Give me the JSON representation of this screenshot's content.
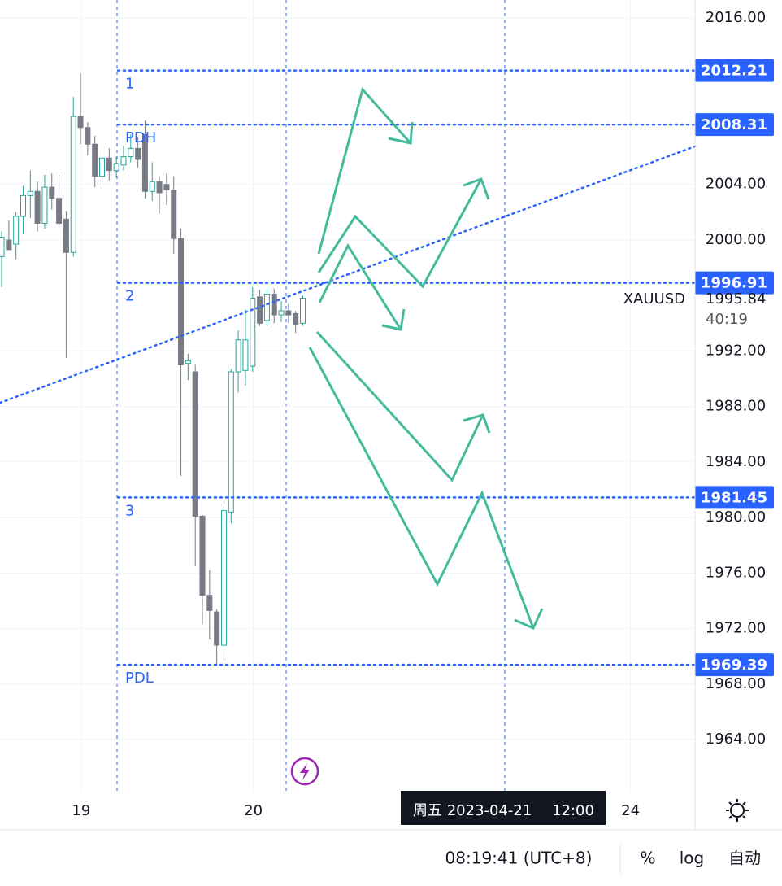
{
  "chart_data": {
    "type": "candlestick",
    "symbol": "XAUUSD",
    "ylim": [
      1960.31,
      2017.29
    ],
    "yticks": [
      {
        "value": 2016,
        "label": "2016.00"
      },
      {
        "value": 2004,
        "label": "2004.00"
      },
      {
        "value": 2000,
        "label": "2000.00"
      },
      {
        "value": 1992,
        "label": "1992.00"
      },
      {
        "value": 1988,
        "label": "1988.00"
      },
      {
        "value": 1984,
        "label": "1984.00"
      },
      {
        "value": 1980,
        "label": "1980.00"
      },
      {
        "value": 1976,
        "label": "1976.00"
      },
      {
        "value": 1972,
        "label": "1972.00"
      },
      {
        "value": 1968,
        "label": "1968.00"
      },
      {
        "value": 1964,
        "label": "1964.00"
      }
    ],
    "xlim": [
      -0.23,
      96.7
    ],
    "xticks": [
      {
        "value": 11.1,
        "label": "19"
      },
      {
        "value": 35.1,
        "label": "20"
      },
      {
        "value": 87.7,
        "label": "24"
      }
    ],
    "up_color": "#26a69a",
    "down_color": "#787b86",
    "candles": {
      "open": [
        1998.8,
        2000.0,
        1999.7,
        2001.7,
        2003.2,
        2003.5,
        2001.2,
        2003.8,
        2003.0,
        2001.5,
        1999.1,
        2008.9,
        2008.1,
        2006.9,
        2004.6,
        2005.9,
        2005.0,
        2005.4,
        2006.0,
        2006.6,
        2007.6,
        2003.5,
        2004.2,
        2004.0,
        2003.6,
        2000.1,
        1991.1,
        1990.5,
        1980.1,
        1974.4,
        1973.2,
        1970.8,
        1980.4,
        1990.5,
        1990.6,
        1990.9,
        1995.9,
        1994.2,
        1996.1,
        1994.6,
        1994.9,
        1994.7,
        1994.0
      ],
      "high": [
        2000.6,
        2001.4,
        2002.0,
        2003.9,
        2005.0,
        2004.2,
        2004.7,
        2004.8,
        2004.7,
        2002.1,
        2010.3,
        2012.0,
        2008.5,
        2007.5,
        2006.5,
        2006.6,
        2006.0,
        2006.8,
        2007.6,
        2007.4,
        2008.6,
        2005.6,
        2004.6,
        2004.8,
        2004.6,
        2000.8,
        1991.8,
        1991.0,
        1980.2,
        1976.2,
        1973.4,
        1980.8,
        1990.7,
        1993.5,
        1995.0,
        1996.6,
        1996.4,
        1996.5,
        1996.5,
        1995.6,
        1995.4,
        1994.9,
        1996.0
      ],
      "low": [
        1996.6,
        1999.3,
        1998.6,
        2000.4,
        2001.6,
        2000.6,
        2000.8,
        2002.2,
        2001.1,
        1991.5,
        1998.8,
        2006.9,
        2006.1,
        2003.8,
        2004.0,
        2004.3,
        2004.5,
        2005.0,
        2005.6,
        2005.2,
        2003.0,
        2002.8,
        2001.9,
        2002.5,
        1999.0,
        1983.0,
        1989.9,
        1976.5,
        1972.3,
        1971.2,
        1969.4,
        1969.7,
        1979.6,
        1989.0,
        1989.5,
        1990.5,
        1993.8,
        1993.8,
        1994.0,
        1994.1,
        1994.0,
        1993.3,
        1993.8
      ],
      "close": [
        2000.2,
        1999.3,
        2001.7,
        2003.2,
        2003.5,
        2001.2,
        2003.8,
        2003.0,
        2001.2,
        1999.1,
        2008.9,
        2008.1,
        2006.9,
        2004.6,
        2005.9,
        2005.0,
        2005.5,
        2006.0,
        2006.6,
        2005.8,
        2003.5,
        2004.2,
        2003.4,
        2003.6,
        2000.1,
        1991.0,
        1991.3,
        1980.1,
        1974.4,
        1973.3,
        1970.8,
        1980.5,
        1990.5,
        1992.8,
        1992.8,
        1995.8,
        1994.0,
        1996.1,
        1994.6,
        1994.9,
        1994.6,
        1993.9,
        1995.8
      ]
    },
    "levels": [
      {
        "label": "1",
        "value": 2012.21
      },
      {
        "label": "PDH",
        "value": 2008.31
      },
      {
        "label": "2",
        "value": 1996.91
      },
      {
        "label": "3",
        "value": 1981.45
      },
      {
        "label": "PDL",
        "value": 1969.39
      }
    ],
    "level_color": "#2962ff",
    "trend_line": [
      1988.27,
      2006.74
    ],
    "last_price": 1995.84,
    "countdown": "40:19",
    "crosshair_date": "周五 2023-04-21",
    "crosshair_time": "12:00"
  },
  "status_bar": {
    "time": "08:19:41 (UTC+8)",
    "buttons": [
      "%",
      "log",
      "自动"
    ]
  }
}
